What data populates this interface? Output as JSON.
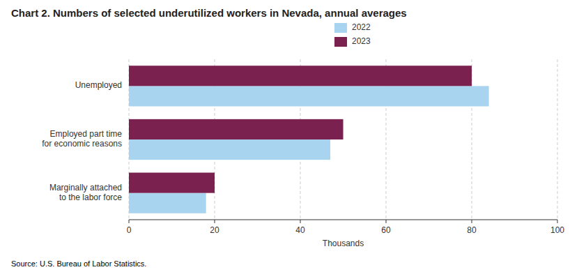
{
  "chart_data": {
    "type": "bar",
    "orientation": "horizontal",
    "title": "Chart 2. Numbers of selected underutilized workers in Nevada, annual averages",
    "categories": [
      "Unemployed",
      "Employed part time\nfor economic reasons",
      "Marginally attached\nto the labor force"
    ],
    "series": [
      {
        "name": "2022",
        "color": "#a8d4f0",
        "values": [
          84,
          47,
          18
        ]
      },
      {
        "name": "2023",
        "color": "#7b2150",
        "values": [
          80,
          50,
          20
        ]
      }
    ],
    "xlabel": "Thousands",
    "xlim": [
      0,
      100
    ],
    "xticks": [
      0,
      20,
      40,
      60,
      80,
      100
    ],
    "grid": true,
    "legend": "top",
    "source": "Source: U.S. Bureau of Labor Statistics."
  }
}
